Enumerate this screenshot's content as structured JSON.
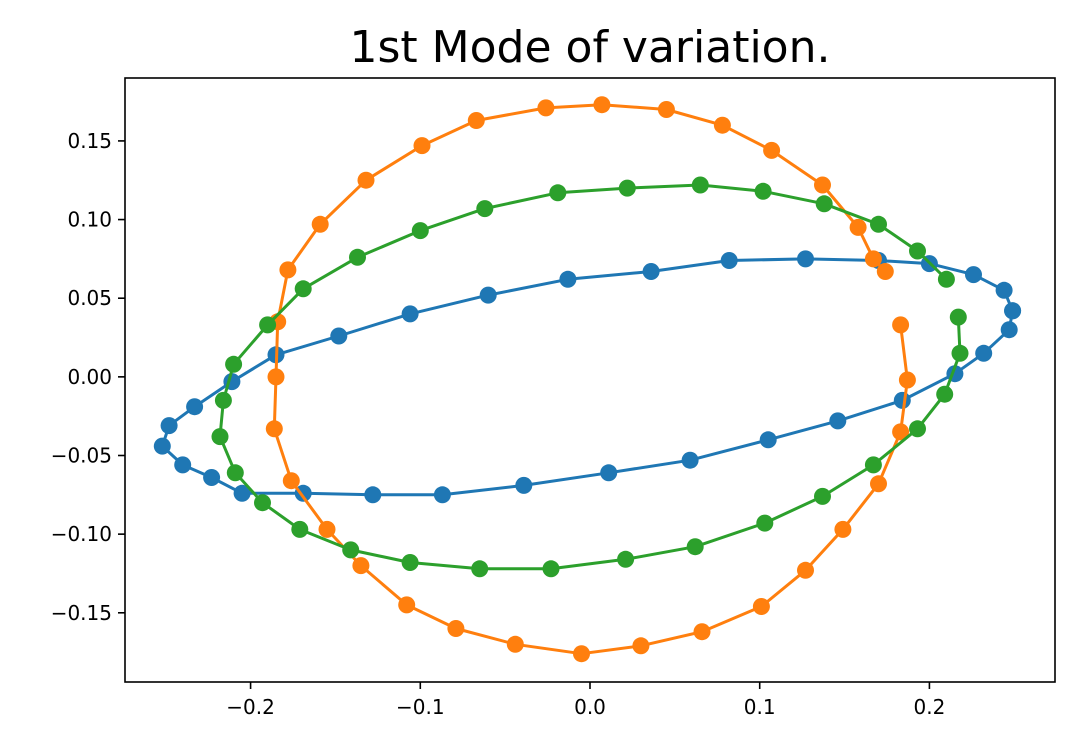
{
  "chart_data": {
    "type": "line",
    "title": "1st Mode of variation.",
    "xlabel": "",
    "ylabel": "",
    "xlim": [
      -0.274,
      0.274
    ],
    "ylim": [
      -0.194,
      0.19
    ],
    "grid": false,
    "legend": "none",
    "markers": true,
    "x_ticks": [
      {
        "value": -0.2,
        "label": "−0.2"
      },
      {
        "value": -0.1,
        "label": "−0.1"
      },
      {
        "value": 0.0,
        "label": "0.0"
      },
      {
        "value": 0.1,
        "label": "0.1"
      },
      {
        "value": 0.2,
        "label": "0.2"
      }
    ],
    "y_ticks": [
      {
        "value": 0.15,
        "label": "0.15"
      },
      {
        "value": 0.1,
        "label": "0.10"
      },
      {
        "value": 0.05,
        "label": "0.05"
      },
      {
        "value": 0.0,
        "label": "0.00"
      },
      {
        "value": -0.05,
        "label": "−0.05"
      },
      {
        "value": -0.1,
        "label": "−0.10"
      },
      {
        "value": -0.15,
        "label": "−0.15"
      }
    ],
    "series": [
      {
        "color": "#1f77b4",
        "points": [
          [
            0.249,
            0.042
          ],
          [
            0.244,
            0.055
          ],
          [
            0.226,
            0.065
          ],
          [
            0.2,
            0.072
          ],
          [
            0.17,
            0.074
          ],
          [
            0.127,
            0.075
          ],
          [
            0.082,
            0.074
          ],
          [
            0.036,
            0.067
          ],
          [
            -0.013,
            0.062
          ],
          [
            -0.06,
            0.052
          ],
          [
            -0.106,
            0.04
          ],
          [
            -0.148,
            0.026
          ],
          [
            -0.185,
            0.014
          ],
          [
            -0.211,
            -0.003
          ],
          [
            -0.233,
            -0.019
          ],
          [
            -0.248,
            -0.031
          ],
          [
            -0.252,
            -0.044
          ],
          [
            -0.24,
            -0.056
          ],
          [
            -0.223,
            -0.064
          ],
          [
            -0.205,
            -0.074
          ],
          [
            -0.169,
            -0.074
          ],
          [
            -0.128,
            -0.075
          ],
          [
            -0.087,
            -0.075
          ],
          [
            -0.039,
            -0.069
          ],
          [
            0.011,
            -0.061
          ],
          [
            0.059,
            -0.053
          ],
          [
            0.105,
            -0.04
          ],
          [
            0.146,
            -0.028
          ],
          [
            0.184,
            -0.015
          ],
          [
            0.215,
            0.002
          ],
          [
            0.232,
            0.015
          ],
          [
            0.247,
            0.03
          ],
          [
            0.249,
            0.042
          ]
        ]
      },
      {
        "color": "#ff7f0e",
        "points": [
          [
            0.174,
            0.067
          ],
          [
            0.167,
            0.075
          ],
          [
            0.158,
            0.095
          ],
          [
            0.137,
            0.122
          ],
          [
            0.107,
            0.144
          ],
          [
            0.078,
            0.16
          ],
          [
            0.045,
            0.17
          ],
          [
            0.007,
            0.173
          ],
          [
            -0.026,
            0.171
          ],
          [
            -0.067,
            0.163
          ],
          [
            -0.099,
            0.147
          ],
          [
            -0.132,
            0.125
          ],
          [
            -0.159,
            0.097
          ],
          [
            -0.178,
            0.068
          ],
          [
            -0.184,
            0.035
          ],
          [
            -0.185,
            0.0
          ],
          [
            -0.186,
            -0.033
          ],
          [
            -0.176,
            -0.066
          ],
          [
            -0.155,
            -0.097
          ],
          [
            -0.135,
            -0.12
          ],
          [
            -0.108,
            -0.145
          ],
          [
            -0.079,
            -0.16
          ],
          [
            -0.044,
            -0.17
          ],
          [
            -0.005,
            -0.176
          ],
          [
            0.03,
            -0.171
          ],
          [
            0.066,
            -0.162
          ],
          [
            0.101,
            -0.146
          ],
          [
            0.127,
            -0.123
          ],
          [
            0.149,
            -0.097
          ],
          [
            0.17,
            -0.068
          ],
          [
            0.183,
            -0.035
          ],
          [
            0.187,
            -0.002
          ],
          [
            0.183,
            0.033
          ]
        ]
      },
      {
        "color": "#2ca02c",
        "points": [
          [
            0.21,
            0.062
          ],
          [
            0.193,
            0.08
          ],
          [
            0.17,
            0.097
          ],
          [
            0.138,
            0.11
          ],
          [
            0.102,
            0.118
          ],
          [
            0.065,
            0.122
          ],
          [
            0.022,
            0.12
          ],
          [
            -0.019,
            0.117
          ],
          [
            -0.062,
            0.107
          ],
          [
            -0.1,
            0.093
          ],
          [
            -0.137,
            0.076
          ],
          [
            -0.169,
            0.056
          ],
          [
            -0.19,
            0.033
          ],
          [
            -0.21,
            0.008
          ],
          [
            -0.216,
            -0.015
          ],
          [
            -0.218,
            -0.038
          ],
          [
            -0.209,
            -0.061
          ],
          [
            -0.193,
            -0.08
          ],
          [
            -0.171,
            -0.097
          ],
          [
            -0.141,
            -0.11
          ],
          [
            -0.106,
            -0.118
          ],
          [
            -0.065,
            -0.122
          ],
          [
            -0.023,
            -0.122
          ],
          [
            0.021,
            -0.116
          ],
          [
            0.062,
            -0.108
          ],
          [
            0.103,
            -0.093
          ],
          [
            0.137,
            -0.076
          ],
          [
            0.167,
            -0.056
          ],
          [
            0.193,
            -0.033
          ],
          [
            0.209,
            -0.011
          ],
          [
            0.218,
            0.015
          ],
          [
            0.217,
            0.038
          ]
        ]
      }
    ]
  }
}
